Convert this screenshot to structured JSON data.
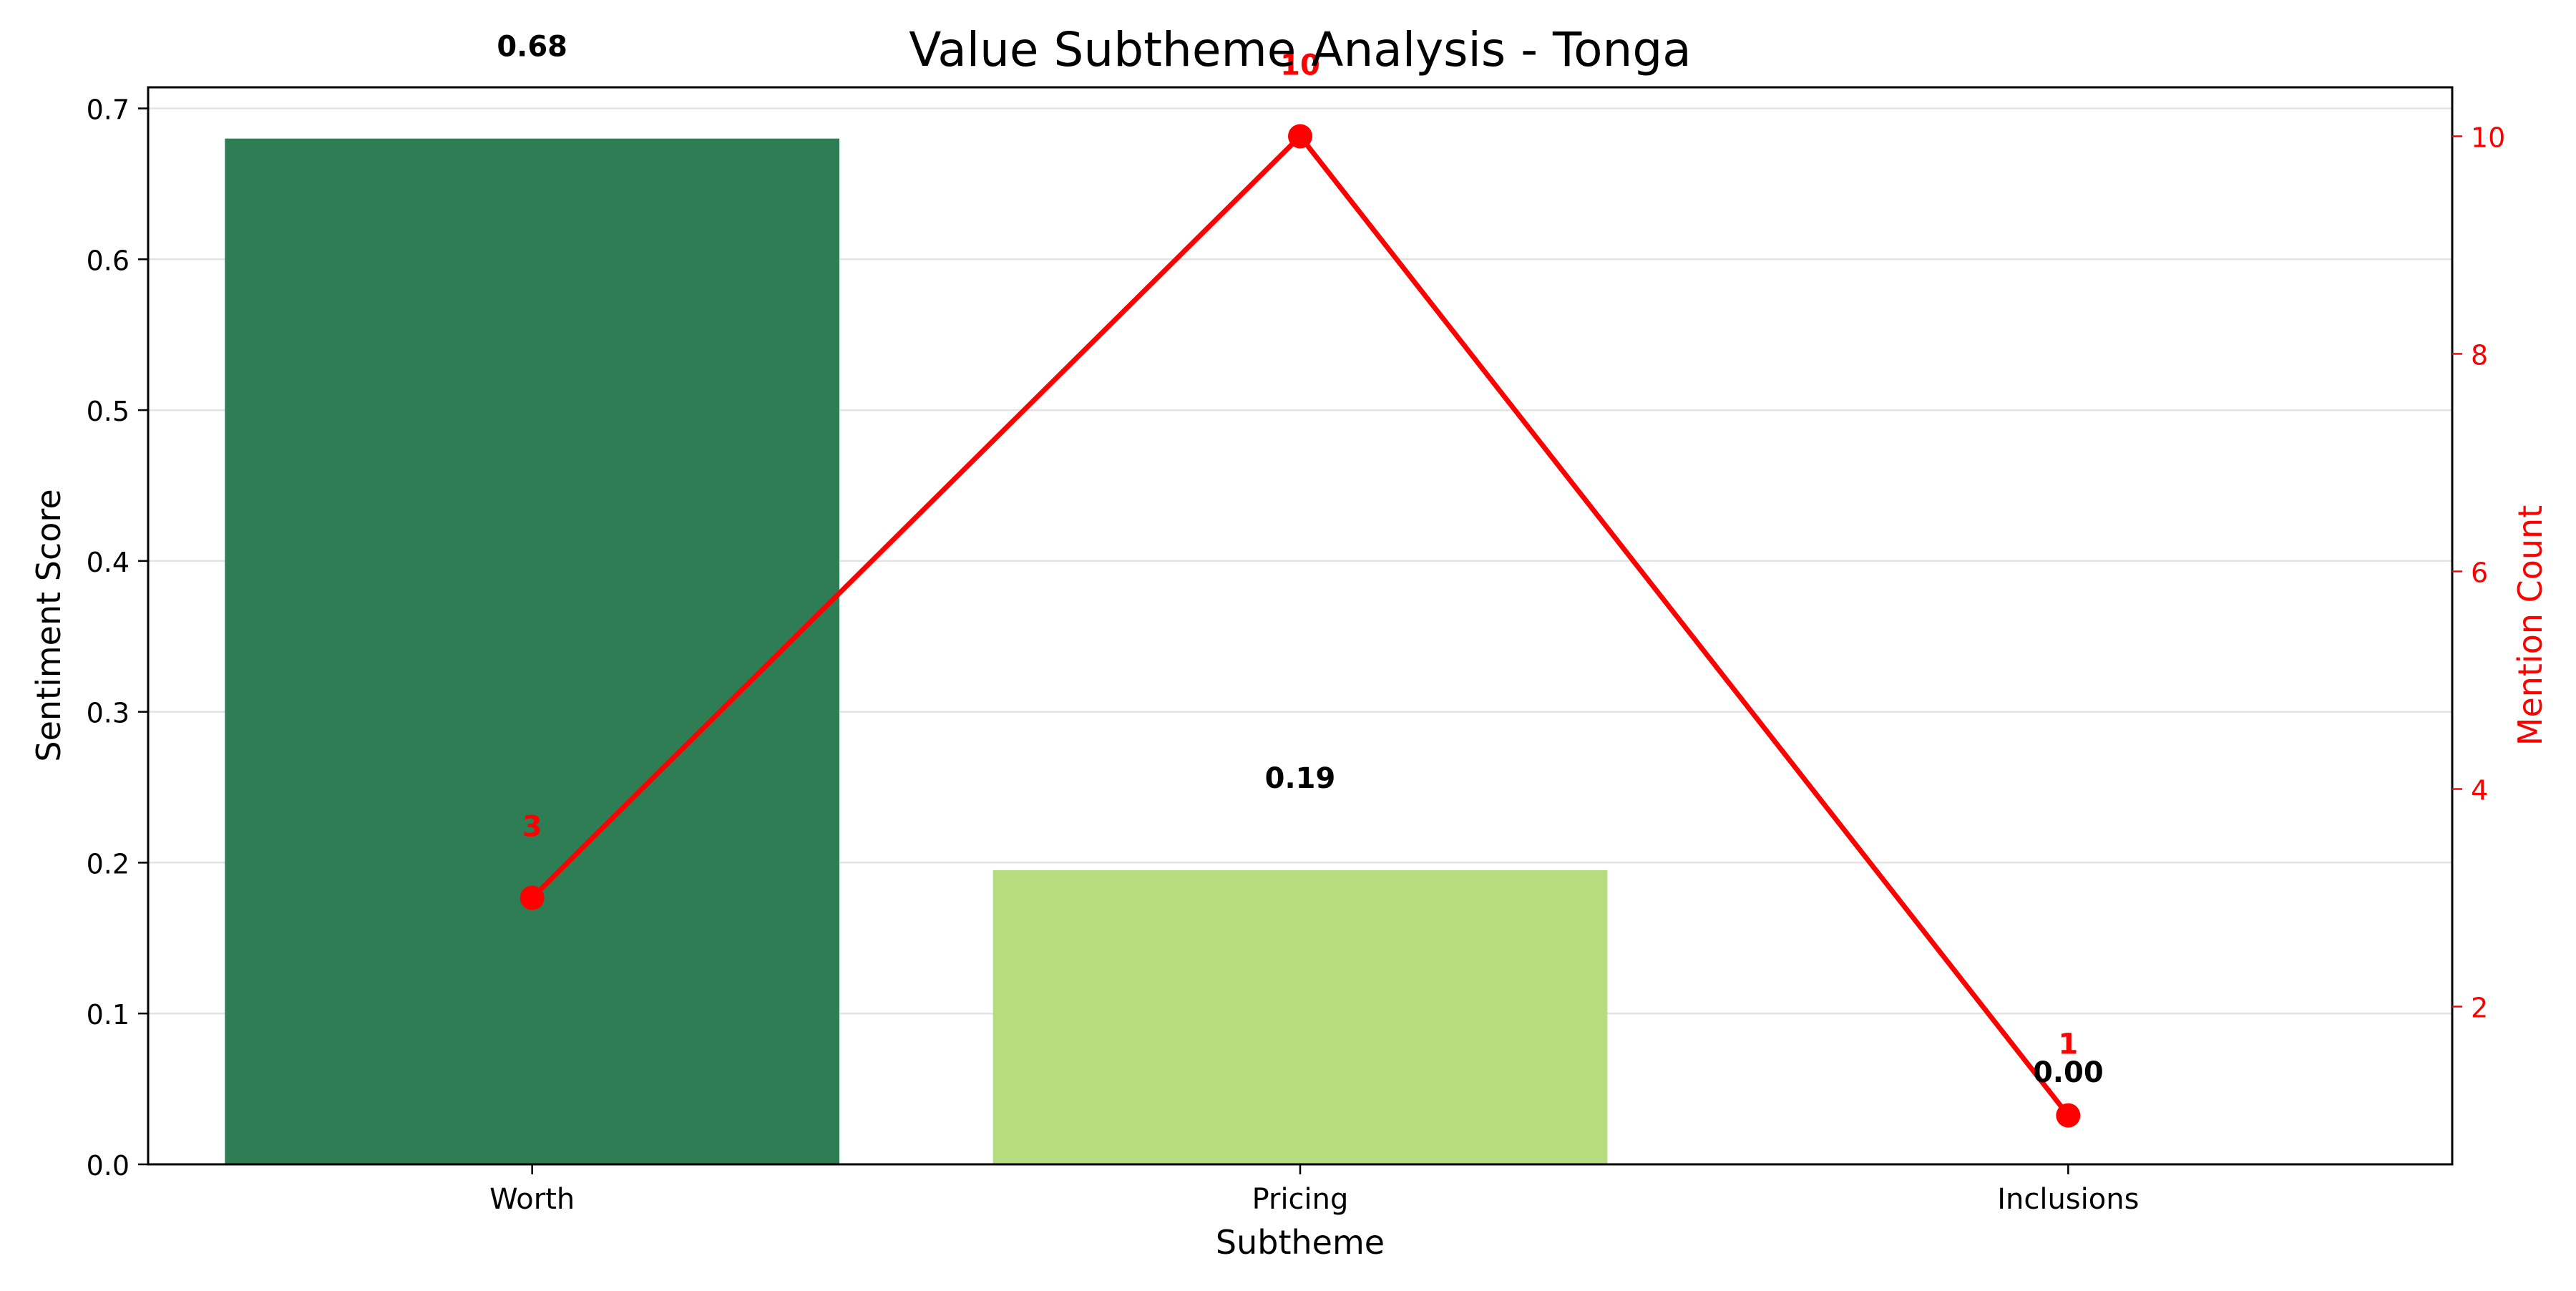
{
  "chart_data": {
    "type": "bar",
    "title": "Value Subtheme Analysis - Tonga",
    "xlabel": "Subtheme",
    "ylabel": "Sentiment Score",
    "y2label": "Mention Count",
    "categories": [
      "Worth",
      "Pricing",
      "Inclusions"
    ],
    "ylim": [
      0,
      0.714
    ],
    "y2lim": [
      0.55,
      10.45
    ],
    "yticks": [
      "0.0",
      "0.1",
      "0.2",
      "0.3",
      "0.4",
      "0.5",
      "0.6",
      "0.7"
    ],
    "y2ticks": [
      "2",
      "4",
      "6",
      "8",
      "10"
    ],
    "grid": true,
    "series": [
      {
        "name": "Sentiment Score",
        "type": "bar",
        "axis": "left",
        "values": [
          0.68,
          0.195,
          0.0
        ],
        "labels": [
          "0.68",
          "0.19",
          "0.00"
        ],
        "colors": [
          "#2e7d55",
          "#b5dd7f",
          "#e8f5c9"
        ]
      },
      {
        "name": "Mention Count",
        "type": "line",
        "axis": "right",
        "values": [
          3,
          10,
          1
        ],
        "labels": [
          "3",
          "10",
          "1"
        ],
        "color": "#ff0000"
      }
    ]
  }
}
